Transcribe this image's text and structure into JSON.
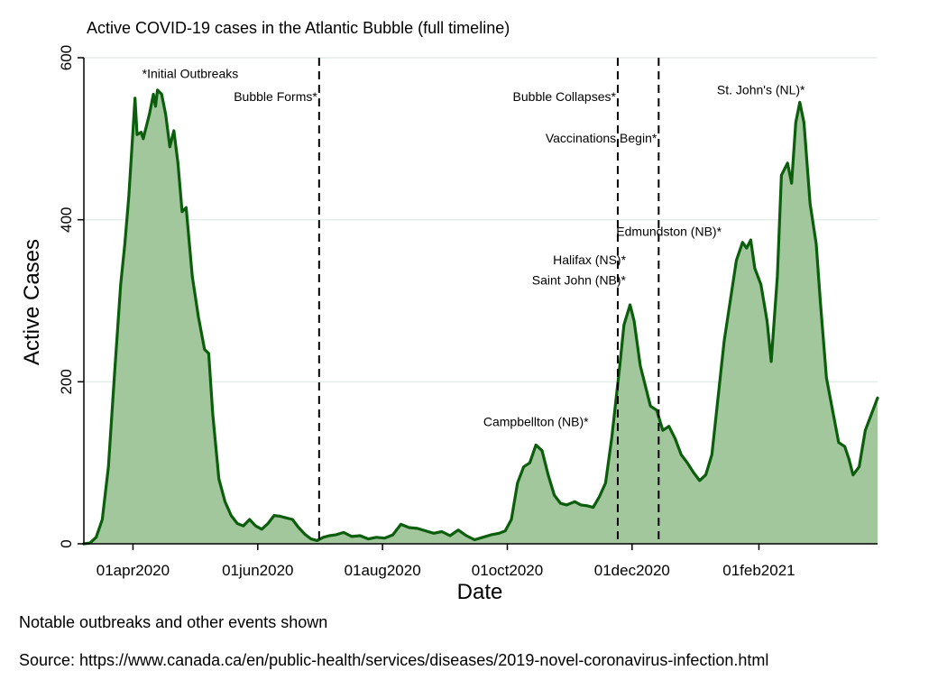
{
  "chart_data": {
    "type": "area",
    "title": "Active COVID-19 cases in the Atlantic Bubble (full timeline)",
    "xlabel": "Date",
    "ylabel": "Active Cases",
    "ylim": [
      0,
      600
    ],
    "yticks": [
      0,
      200,
      400,
      600
    ],
    "x_start": "2020-03-08",
    "x_end": "2021-03-31",
    "xticks": [
      {
        "date": "2020-04-01",
        "label": "01apr2020"
      },
      {
        "date": "2020-06-01",
        "label": "01jun2020"
      },
      {
        "date": "2020-08-01",
        "label": "01aug2020"
      },
      {
        "date": "2020-10-01",
        "label": "01oct2020"
      },
      {
        "date": "2020-12-01",
        "label": "01dec2020"
      },
      {
        "date": "2021-02-01",
        "label": "01feb2021"
      }
    ],
    "series": [
      {
        "name": "Active cases",
        "points": [
          [
            "2020-03-08",
            0
          ],
          [
            "2020-03-11",
            1
          ],
          [
            "2020-03-14",
            8
          ],
          [
            "2020-03-17",
            30
          ],
          [
            "2020-03-20",
            95
          ],
          [
            "2020-03-23",
            210
          ],
          [
            "2020-03-26",
            320
          ],
          [
            "2020-03-28",
            370
          ],
          [
            "2020-03-30",
            430
          ],
          [
            "2020-04-02",
            550
          ],
          [
            "2020-04-03",
            505
          ],
          [
            "2020-04-05",
            508
          ],
          [
            "2020-04-06",
            500
          ],
          [
            "2020-04-09",
            530
          ],
          [
            "2020-04-11",
            555
          ],
          [
            "2020-04-12",
            540
          ],
          [
            "2020-04-13",
            560
          ],
          [
            "2020-04-15",
            555
          ],
          [
            "2020-04-17",
            530
          ],
          [
            "2020-04-19",
            490
          ],
          [
            "2020-04-21",
            510
          ],
          [
            "2020-04-23",
            470
          ],
          [
            "2020-04-25",
            410
          ],
          [
            "2020-04-27",
            415
          ],
          [
            "2020-04-30",
            330
          ],
          [
            "2020-05-03",
            280
          ],
          [
            "2020-05-06",
            240
          ],
          [
            "2020-05-08",
            235
          ],
          [
            "2020-05-10",
            160
          ],
          [
            "2020-05-13",
            80
          ],
          [
            "2020-05-16",
            52
          ],
          [
            "2020-05-19",
            35
          ],
          [
            "2020-05-22",
            25
          ],
          [
            "2020-05-25",
            22
          ],
          [
            "2020-05-28",
            30
          ],
          [
            "2020-05-31",
            22
          ],
          [
            "2020-06-03",
            18
          ],
          [
            "2020-06-06",
            25
          ],
          [
            "2020-06-09",
            35
          ],
          [
            "2020-06-12",
            34
          ],
          [
            "2020-06-15",
            32
          ],
          [
            "2020-06-18",
            30
          ],
          [
            "2020-06-21",
            20
          ],
          [
            "2020-06-24",
            12
          ],
          [
            "2020-06-27",
            6
          ],
          [
            "2020-06-30",
            4
          ],
          [
            "2020-07-03",
            8
          ],
          [
            "2020-07-06",
            10
          ],
          [
            "2020-07-09",
            11
          ],
          [
            "2020-07-13",
            14
          ],
          [
            "2020-07-17",
            9
          ],
          [
            "2020-07-21",
            10
          ],
          [
            "2020-07-25",
            6
          ],
          [
            "2020-07-29",
            8
          ],
          [
            "2020-08-02",
            7
          ],
          [
            "2020-08-06",
            11
          ],
          [
            "2020-08-10",
            24
          ],
          [
            "2020-08-14",
            20
          ],
          [
            "2020-08-18",
            19
          ],
          [
            "2020-08-22",
            16
          ],
          [
            "2020-08-26",
            13
          ],
          [
            "2020-08-30",
            15
          ],
          [
            "2020-09-03",
            10
          ],
          [
            "2020-09-07",
            17
          ],
          [
            "2020-09-11",
            10
          ],
          [
            "2020-09-15",
            5
          ],
          [
            "2020-09-19",
            8
          ],
          [
            "2020-09-23",
            11
          ],
          [
            "2020-09-27",
            13
          ],
          [
            "2020-09-30",
            16
          ],
          [
            "2020-10-03",
            30
          ],
          [
            "2020-10-06",
            75
          ],
          [
            "2020-10-09",
            95
          ],
          [
            "2020-10-12",
            100
          ],
          [
            "2020-10-15",
            122
          ],
          [
            "2020-10-18",
            115
          ],
          [
            "2020-10-21",
            85
          ],
          [
            "2020-10-24",
            60
          ],
          [
            "2020-10-27",
            50
          ],
          [
            "2020-10-30",
            48
          ],
          [
            "2020-11-03",
            52
          ],
          [
            "2020-11-06",
            48
          ],
          [
            "2020-11-09",
            47
          ],
          [
            "2020-11-12",
            45
          ],
          [
            "2020-11-15",
            58
          ],
          [
            "2020-11-18",
            75
          ],
          [
            "2020-11-21",
            130
          ],
          [
            "2020-11-23",
            175
          ],
          [
            "2020-11-25",
            220
          ],
          [
            "2020-11-27",
            270
          ],
          [
            "2020-11-30",
            295
          ],
          [
            "2020-12-02",
            275
          ],
          [
            "2020-12-05",
            220
          ],
          [
            "2020-12-07",
            200
          ],
          [
            "2020-12-10",
            170
          ],
          [
            "2020-12-13",
            165
          ],
          [
            "2020-12-16",
            140
          ],
          [
            "2020-12-19",
            145
          ],
          [
            "2020-12-22",
            130
          ],
          [
            "2020-12-25",
            110
          ],
          [
            "2020-12-28",
            100
          ],
          [
            "2020-12-31",
            88
          ],
          [
            "2021-01-03",
            78
          ],
          [
            "2021-01-06",
            85
          ],
          [
            "2021-01-09",
            110
          ],
          [
            "2021-01-12",
            180
          ],
          [
            "2021-01-15",
            250
          ],
          [
            "2021-01-18",
            300
          ],
          [
            "2021-01-21",
            350
          ],
          [
            "2021-01-24",
            372
          ],
          [
            "2021-01-26",
            365
          ],
          [
            "2021-01-28",
            375
          ],
          [
            "2021-01-30",
            340
          ],
          [
            "2021-02-02",
            320
          ],
          [
            "2021-02-05",
            275
          ],
          [
            "2021-02-07",
            225
          ],
          [
            "2021-02-10",
            330
          ],
          [
            "2021-02-12",
            455
          ],
          [
            "2021-02-15",
            470
          ],
          [
            "2021-02-17",
            445
          ],
          [
            "2021-02-19",
            520
          ],
          [
            "2021-02-21",
            545
          ],
          [
            "2021-02-23",
            520
          ],
          [
            "2021-02-26",
            420
          ],
          [
            "2021-03-01",
            370
          ],
          [
            "2021-03-03",
            300
          ],
          [
            "2021-03-06",
            205
          ],
          [
            "2021-03-09",
            165
          ],
          [
            "2021-03-12",
            125
          ],
          [
            "2021-03-15",
            120
          ],
          [
            "2021-03-17",
            105
          ],
          [
            "2021-03-19",
            85
          ],
          [
            "2021-03-22",
            95
          ],
          [
            "2021-03-25",
            140
          ],
          [
            "2021-03-28",
            160
          ],
          [
            "2021-03-31",
            180
          ]
        ]
      }
    ],
    "event_lines": [
      {
        "date": "2020-07-01",
        "label": "Bubble Forms*"
      },
      {
        "date": "2020-11-24",
        "label": "Bubble Collapses*"
      },
      {
        "date": "2020-12-14",
        "label": "Vaccinations Begin*"
      }
    ],
    "annotations": [
      {
        "date": "2020-04-29",
        "value": 575,
        "label": "*Initial Outbreaks",
        "anchor": "middle"
      },
      {
        "date": "2020-10-15",
        "value": 145,
        "label": "Campbellton (NB)*",
        "anchor": "middle"
      },
      {
        "date": "2020-11-28",
        "value": 345,
        "label": "Halifax (NS)*",
        "anchor": "end"
      },
      {
        "date": "2020-11-28",
        "value": 320,
        "label": "Saint John (NB)*",
        "anchor": "end"
      },
      {
        "date": "2020-12-19",
        "value": 380,
        "label": "Edmundston (NB)*",
        "anchor": "middle"
      },
      {
        "date": "2021-02-02",
        "value": 555,
        "label": "St. John's (NL)*",
        "anchor": "middle"
      }
    ]
  },
  "notes": {
    "line1": "Notable outbreaks and other events shown",
    "line2": "Source: https://www.canada.ca/en/public-health/services/diseases/2019-novel-coronavirus-infection.html"
  },
  "colors": {
    "line": "#0b5e0b",
    "fill": "#a3c79d",
    "grid": "#e3ece7"
  }
}
